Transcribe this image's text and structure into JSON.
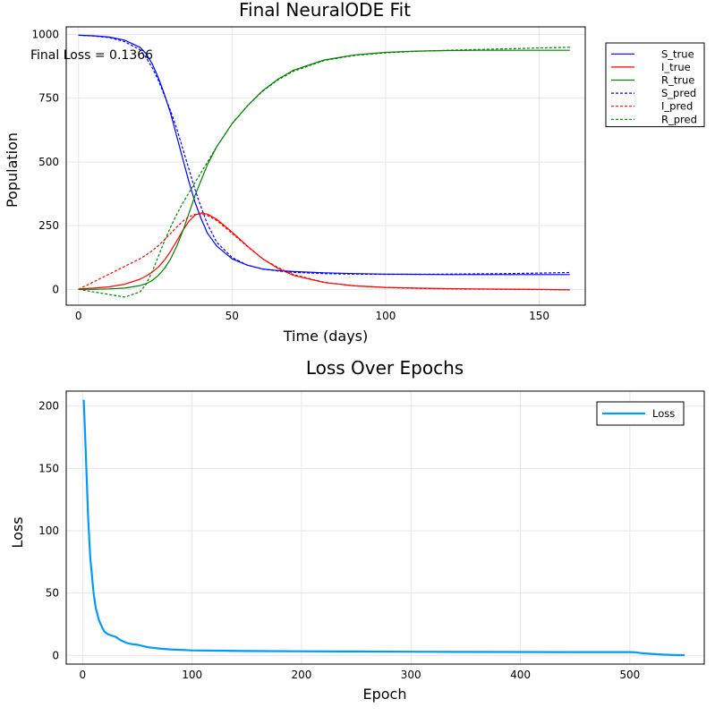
{
  "chart_data": [
    {
      "type": "line",
      "title": "Final NeuralODE Fit",
      "xlabel": "Time (days)",
      "ylabel": "Population",
      "xlim": [
        -4,
        165
      ],
      "ylim": [
        -62,
        1030
      ],
      "xticks": [
        0,
        50,
        100,
        150
      ],
      "yticks": [
        0,
        250,
        500,
        750,
        1000
      ],
      "grid": true,
      "legend_position": "top-right-outside",
      "annotation": "Final Loss = 0.1366",
      "series": [
        {
          "name": "S_true",
          "color": "#0000ff",
          "dash": "solid",
          "x": [
            0,
            5,
            10,
            15,
            20,
            22,
            24,
            26,
            28,
            30,
            32,
            34,
            36,
            38,
            40,
            42,
            45,
            50,
            55,
            60,
            65,
            70,
            80,
            90,
            100,
            110,
            120,
            130,
            140,
            150,
            160
          ],
          "y": [
            997,
            995,
            990,
            978,
            950,
            925,
            885,
            830,
            765,
            690,
            600,
            510,
            420,
            340,
            275,
            220,
            170,
            120,
            95,
            80,
            74,
            70,
            65,
            62,
            60,
            59,
            58,
            58,
            58,
            58,
            58
          ]
        },
        {
          "name": "I_true",
          "color": "#ff0000",
          "dash": "solid",
          "x": [
            0,
            5,
            10,
            15,
            20,
            22,
            24,
            26,
            28,
            30,
            32,
            34,
            36,
            38,
            40,
            42,
            45,
            50,
            55,
            60,
            65,
            70,
            80,
            90,
            100,
            110,
            120,
            130,
            140,
            150,
            160
          ],
          "y": [
            2,
            5,
            10,
            20,
            40,
            52,
            68,
            88,
            115,
            150,
            190,
            232,
            268,
            292,
            300,
            295,
            275,
            225,
            170,
            120,
            82,
            55,
            27,
            14,
            8,
            5,
            3,
            2,
            1,
            0,
            -2
          ]
        },
        {
          "name": "R_true",
          "color": "#008000",
          "dash": "solid",
          "x": [
            0,
            5,
            10,
            15,
            20,
            22,
            24,
            26,
            28,
            30,
            32,
            34,
            36,
            38,
            40,
            42,
            45,
            50,
            55,
            60,
            65,
            70,
            80,
            90,
            100,
            110,
            120,
            130,
            140,
            150,
            160
          ],
          "y": [
            0,
            0,
            2,
            5,
            15,
            22,
            35,
            55,
            82,
            120,
            170,
            230,
            300,
            370,
            430,
            490,
            560,
            650,
            720,
            780,
            825,
            860,
            900,
            920,
            930,
            935,
            937,
            938,
            938,
            938,
            938
          ]
        },
        {
          "name": "S_pred",
          "color": "#0000ff",
          "dash": "dotted",
          "x": [
            0,
            5,
            10,
            15,
            20,
            22,
            24,
            26,
            28,
            30,
            32,
            34,
            36,
            38,
            40,
            42,
            45,
            50,
            55,
            60,
            65,
            70,
            80,
            90,
            100,
            110,
            120,
            130,
            140,
            150,
            160
          ],
          "y": [
            997,
            994,
            988,
            972,
            940,
            910,
            870,
            820,
            760,
            700,
            630,
            550,
            470,
            390,
            320,
            255,
            185,
            125,
            95,
            80,
            72,
            67,
            62,
            60,
            59,
            59,
            60,
            61,
            62,
            64,
            66
          ]
        },
        {
          "name": "I_pred",
          "color": "#ff0000",
          "dash": "dotted",
          "x": [
            0,
            5,
            10,
            15,
            20,
            22,
            24,
            26,
            28,
            30,
            32,
            34,
            36,
            38,
            40,
            42,
            45,
            50,
            55,
            60,
            65,
            70,
            80,
            90,
            100,
            110,
            120,
            130,
            140,
            150,
            160
          ],
          "y": [
            0,
            30,
            60,
            90,
            120,
            135,
            152,
            172,
            195,
            220,
            245,
            268,
            285,
            294,
            296,
            290,
            270,
            220,
            168,
            120,
            85,
            58,
            28,
            14,
            7,
            4,
            2,
            1,
            0,
            -1,
            -2
          ]
        },
        {
          "name": "R_pred",
          "color": "#008000",
          "dash": "dotted",
          "x": [
            0,
            5,
            10,
            15,
            20,
            22,
            24,
            26,
            28,
            30,
            32,
            34,
            36,
            38,
            40,
            42,
            45,
            50,
            55,
            60,
            65,
            70,
            80,
            90,
            100,
            110,
            120,
            130,
            140,
            150,
            160
          ],
          "y": [
            0,
            -10,
            -20,
            -30,
            -10,
            20,
            70,
            130,
            190,
            245,
            295,
            340,
            380,
            420,
            460,
            500,
            560,
            650,
            720,
            778,
            822,
            856,
            898,
            918,
            928,
            934,
            938,
            941,
            944,
            947,
            950
          ]
        }
      ]
    },
    {
      "type": "line",
      "title": "Loss Over Epochs",
      "xlabel": "Epoch",
      "ylabel": "Loss",
      "xlim": [
        -15,
        568
      ],
      "ylim": [
        -7,
        212
      ],
      "xticks": [
        0,
        100,
        200,
        300,
        400,
        500
      ],
      "yticks": [
        0,
        50,
        100,
        150,
        200
      ],
      "grid": true,
      "legend_position": "top-right",
      "series": [
        {
          "name": "Loss",
          "color": "#009af9",
          "dash": "solid",
          "x": [
            1,
            3,
            5,
            7,
            10,
            12,
            15,
            18,
            20,
            23,
            26,
            30,
            35,
            40,
            45,
            50,
            55,
            60,
            70,
            80,
            100,
            150,
            200,
            250,
            300,
            350,
            400,
            450,
            500,
            505,
            510,
            520,
            530,
            540,
            550
          ],
          "y": [
            205,
            160,
            110,
            78,
            50,
            38,
            28,
            22,
            19,
            17,
            16,
            15,
            12,
            10,
            9,
            8.5,
            7.5,
            6.5,
            5.5,
            4.8,
            4,
            3.5,
            3.3,
            3.1,
            2.9,
            2.8,
            2.7,
            2.6,
            2.6,
            2.5,
            1.8,
            1.2,
            0.6,
            0.3,
            0.2
          ]
        }
      ]
    }
  ]
}
